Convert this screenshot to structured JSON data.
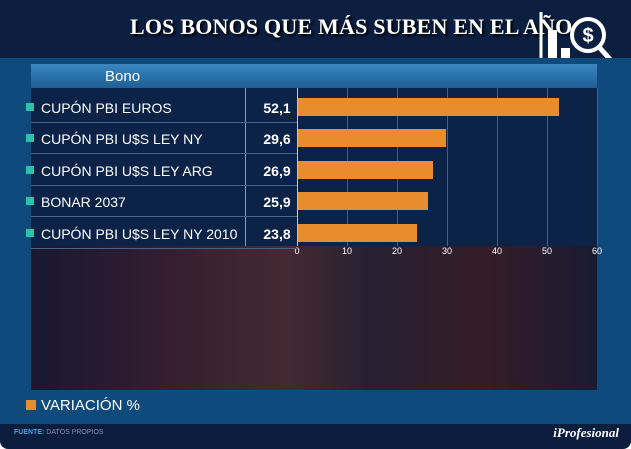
{
  "title": "LOS BONOS QUE MÁS SUBEN EN EL AÑO",
  "chart_data": {
    "type": "bar",
    "orientation": "horizontal",
    "column_header": "Bono",
    "categories": [
      "CUPÓN PBI EUROS",
      "CUPÓN PBI U$S LEY NY",
      "CUPÓN PBI U$S LEY ARG",
      "BONAR 2037",
      "CUPÓN PBI U$S LEY NY 2010"
    ],
    "values": [
      52.1,
      29.6,
      26.9,
      25.9,
      23.8
    ],
    "value_labels": [
      "52,1",
      "29,6",
      "26,9",
      "25,9",
      "23,8"
    ],
    "xlim": [
      0,
      60
    ],
    "xticks": [
      "0",
      "10",
      "20",
      "30",
      "40",
      "50",
      "60"
    ],
    "legend": "VARIACIÓN %",
    "bar_color": "#e88d2e"
  },
  "footer": {
    "source_label": "FUENTE:",
    "source": "DATOS PROPIOS",
    "brand": "iProfesional"
  }
}
